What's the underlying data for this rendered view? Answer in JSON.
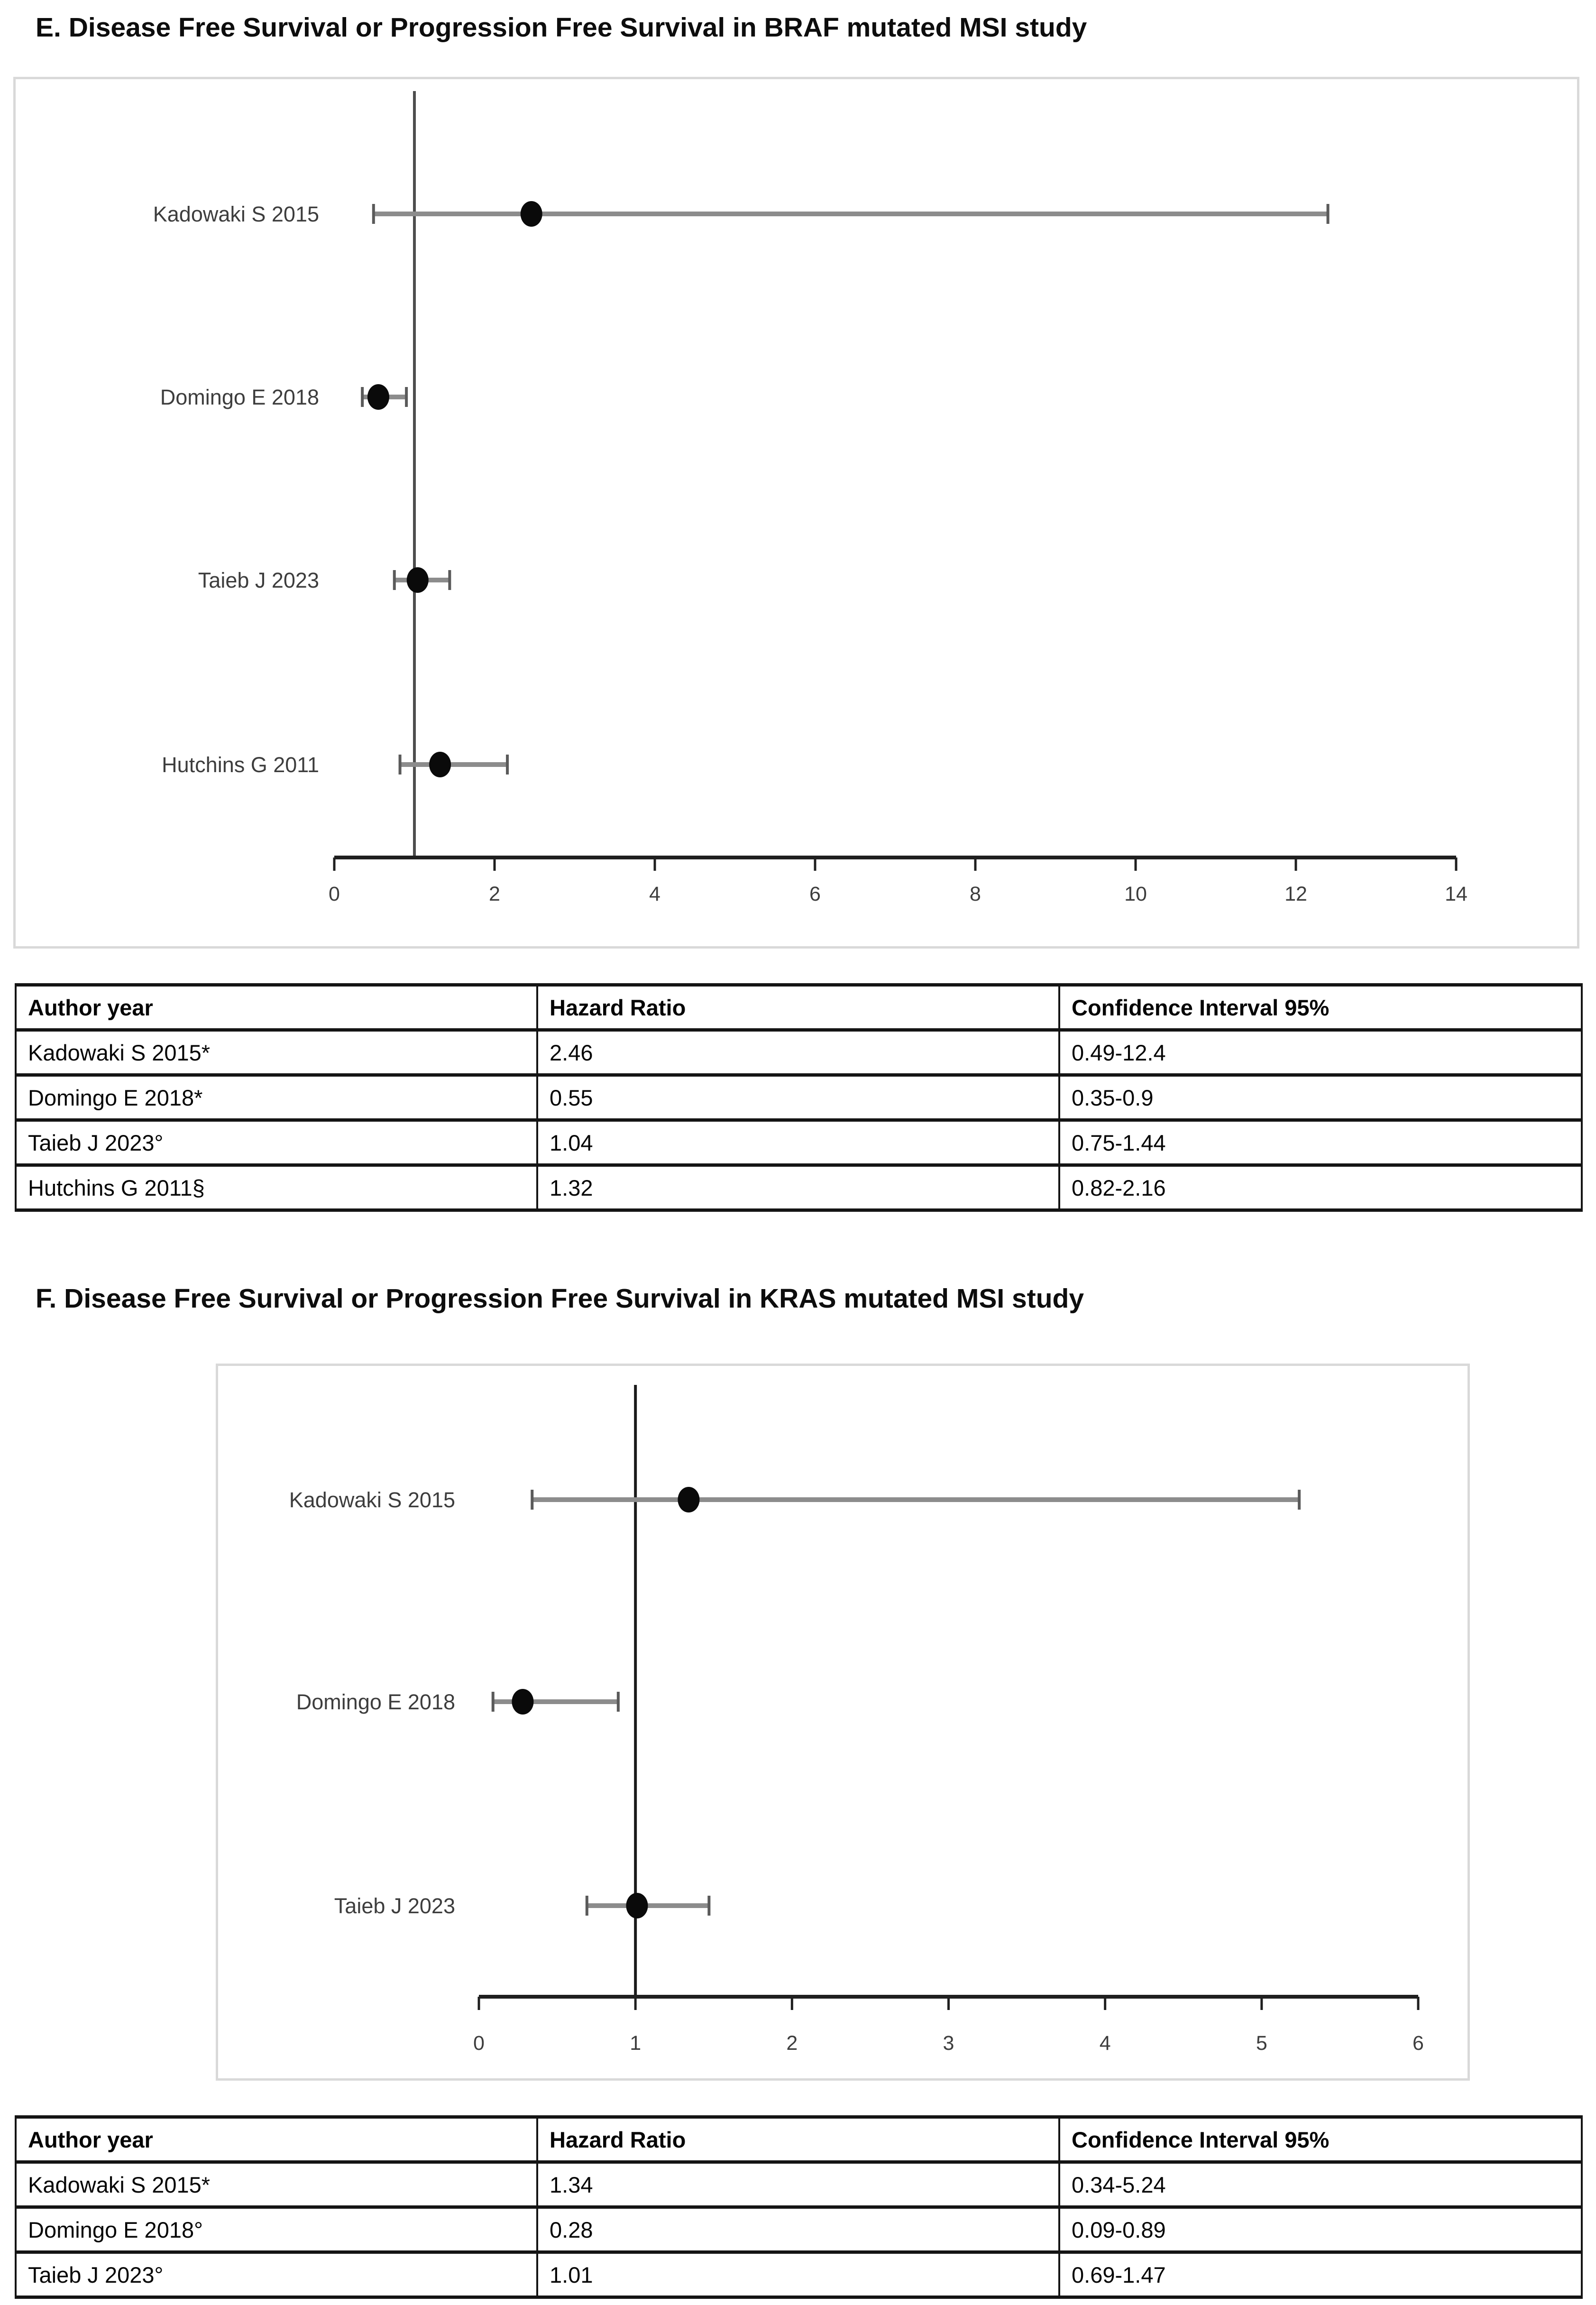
{
  "colors": {
    "page_bg": "#ffffff",
    "plot_border": "#d9d9d9",
    "axis": "#1f1f1f",
    "ref_line_e": "#4d4d4d",
    "ref_line_f": "#1a1a1a",
    "ci_line": "#8c8c8c",
    "ci_cap": "#5a5a5a",
    "marker": "#0a0a0a",
    "label_text": "#3d3d3d",
    "table_border": "#141414",
    "title_text": "#0d0d0d"
  },
  "figures": [
    {
      "panel": "E",
      "title": "E. Disease Free Survival or Progression Free Survival in BRAF mutated MSI study",
      "table": {
        "columns": [
          "Author year",
          "Hazard Ratio",
          "Confidence Interval 95%"
        ],
        "rows": [
          [
            "Kadowaki S 2015*",
            "2.46",
            "0.49-12.4"
          ],
          [
            "Domingo E 2018*",
            "0.55",
            "0.35-0.9"
          ],
          [
            "Taieb J 2023°",
            "1.04",
            "0.75-1.44"
          ],
          [
            "Hutchins G 2011§",
            "1.32",
            "0.82-2.16"
          ]
        ]
      }
    },
    {
      "panel": "F",
      "title": "F. Disease Free Survival or Progression Free Survival in KRAS mutated MSI study",
      "table": {
        "columns": [
          "Author year",
          "Hazard Ratio",
          "Confidence Interval 95%"
        ],
        "rows": [
          [
            "Kadowaki S 2015*",
            "1.34",
            "0.34-5.24"
          ],
          [
            "Domingo E 2018°",
            "0.28",
            "0.09-0.89"
          ],
          [
            "Taieb J 2023°",
            "1.01",
            "0.69-1.47"
          ]
        ]
      }
    }
  ],
  "chart_data": [
    {
      "type": "scatter",
      "subtype": "forest_plot",
      "title": "E. Disease Free Survival or Progression Free Survival in BRAF mutated MSI study",
      "studies": [
        "Kadowaki S 2015",
        "Domingo E 2018",
        "Taieb J 2023",
        "Hutchins G 2011"
      ],
      "hazard_ratio": [
        2.46,
        0.55,
        1.04,
        1.32
      ],
      "ci_low": [
        0.49,
        0.35,
        0.75,
        0.82
      ],
      "ci_high": [
        12.4,
        0.9,
        1.44,
        2.16
      ],
      "xlim": [
        0,
        14
      ],
      "xticks": [
        0,
        2,
        4,
        6,
        8,
        10,
        12,
        14
      ],
      "reference_line_x": 1,
      "xlabel": "",
      "ylabel": "",
      "legend": null,
      "grid": false
    },
    {
      "type": "scatter",
      "subtype": "forest_plot",
      "title": "F. Disease Free Survival or Progression Free Survival in KRAS mutated MSI study",
      "studies": [
        "Kadowaki S 2015",
        "Domingo E 2018",
        "Taieb J 2023"
      ],
      "hazard_ratio": [
        1.34,
        0.28,
        1.01
      ],
      "ci_low": [
        0.34,
        0.09,
        0.69
      ],
      "ci_high": [
        5.24,
        0.89,
        1.47
      ],
      "xlim": [
        0,
        6
      ],
      "xticks": [
        0,
        1,
        2,
        3,
        4,
        5,
        6
      ],
      "reference_line_x": 1,
      "xlabel": "",
      "ylabel": "",
      "legend": null,
      "grid": false
    }
  ]
}
